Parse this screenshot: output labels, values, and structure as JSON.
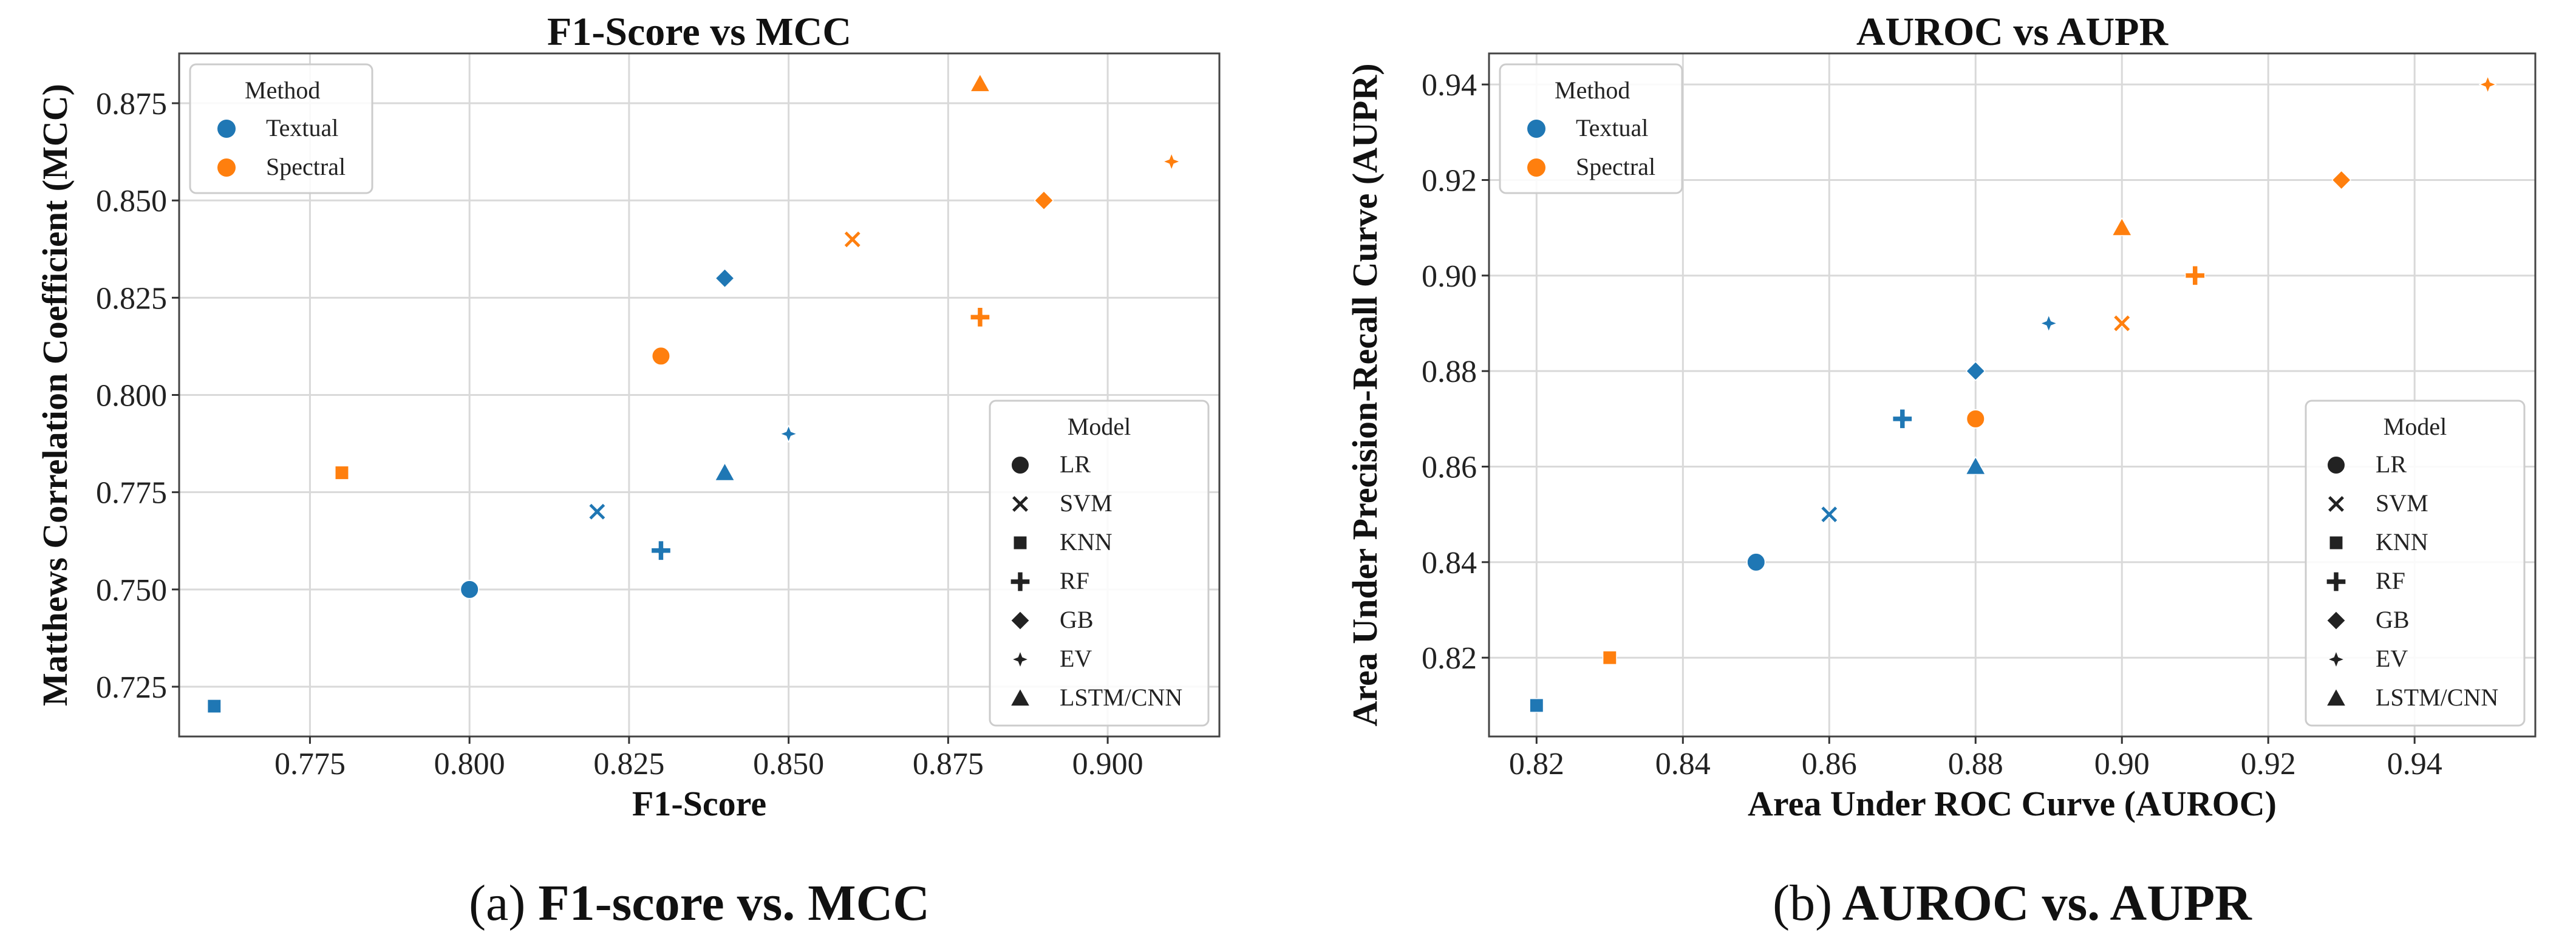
{
  "chart_data": [
    {
      "type": "scatter",
      "title": "F1-Score vs MCC",
      "xlabel": "F1-Score",
      "ylabel": "Matthews Correlation Coefficient (MCC)",
      "xlim": [
        0.7545,
        0.9175
      ],
      "ylim": [
        0.7122,
        0.8878
      ],
      "xticks": [
        0.775,
        0.8,
        0.825,
        0.85,
        0.875,
        0.9
      ],
      "xtick_labels": [
        "0.775",
        "0.800",
        "0.825",
        "0.850",
        "0.875",
        "0.900"
      ],
      "yticks": [
        0.725,
        0.75,
        0.775,
        0.8,
        0.825,
        0.85,
        0.875
      ],
      "ytick_labels": [
        "0.725",
        "0.750",
        "0.775",
        "0.800",
        "0.825",
        "0.850",
        "0.875"
      ],
      "grid": true,
      "caption_letter": "(a)",
      "caption_text": " F1-score vs. MCC",
      "legend_method": {
        "title": "Method",
        "placement": "top-left"
      },
      "legend_model": {
        "title": "Model",
        "placement": "bottom-right"
      },
      "series": [
        {
          "name": "Textual",
          "color": "#1f77b4",
          "points": [
            {
              "model": "LR",
              "x": 0.8,
              "y": 0.75
            },
            {
              "model": "SVM",
              "x": 0.82,
              "y": 0.77
            },
            {
              "model": "KNN",
              "x": 0.76,
              "y": 0.72
            },
            {
              "model": "RF",
              "x": 0.83,
              "y": 0.76
            },
            {
              "model": "GB",
              "x": 0.84,
              "y": 0.83
            },
            {
              "model": "EV",
              "x": 0.85,
              "y": 0.79
            },
            {
              "model": "LSTM/CNN",
              "x": 0.84,
              "y": 0.78
            }
          ]
        },
        {
          "name": "Spectral",
          "color": "#ff7f0e",
          "points": [
            {
              "model": "LR",
              "x": 0.83,
              "y": 0.81
            },
            {
              "model": "SVM",
              "x": 0.86,
              "y": 0.84
            },
            {
              "model": "KNN",
              "x": 0.78,
              "y": 0.78
            },
            {
              "model": "RF",
              "x": 0.88,
              "y": 0.82
            },
            {
              "model": "GB",
              "x": 0.89,
              "y": 0.85
            },
            {
              "model": "EV",
              "x": 0.91,
              "y": 0.86
            },
            {
              "model": "LSTM/CNN",
              "x": 0.88,
              "y": 0.88
            }
          ]
        }
      ]
    },
    {
      "type": "scatter",
      "title": "AUROC vs AUPR",
      "xlabel": "Area Under ROC Curve (AUROC)",
      "ylabel": "Area Under Precision-Recall Curve (AUPR)",
      "xlim": [
        0.8135,
        0.9565
      ],
      "ylim": [
        0.8035,
        0.9465
      ],
      "xticks": [
        0.82,
        0.84,
        0.86,
        0.88,
        0.9,
        0.92,
        0.94
      ],
      "xtick_labels": [
        "0.82",
        "0.84",
        "0.86",
        "0.88",
        "0.90",
        "0.92",
        "0.94"
      ],
      "yticks": [
        0.82,
        0.84,
        0.86,
        0.88,
        0.9,
        0.92,
        0.94
      ],
      "ytick_labels": [
        "0.82",
        "0.84",
        "0.86",
        "0.88",
        "0.90",
        "0.92",
        "0.94"
      ],
      "grid": true,
      "caption_letter": "(b)",
      "caption_text": " AUROC vs. AUPR",
      "legend_method": {
        "title": "Method",
        "placement": "top-left"
      },
      "legend_model": {
        "title": "Model",
        "placement": "bottom-right"
      },
      "series": [
        {
          "name": "Textual",
          "color": "#1f77b4",
          "points": [
            {
              "model": "LR",
              "x": 0.85,
              "y": 0.84
            },
            {
              "model": "SVM",
              "x": 0.86,
              "y": 0.85
            },
            {
              "model": "KNN",
              "x": 0.82,
              "y": 0.81
            },
            {
              "model": "RF",
              "x": 0.87,
              "y": 0.87
            },
            {
              "model": "GB",
              "x": 0.88,
              "y": 0.88
            },
            {
              "model": "EV",
              "x": 0.89,
              "y": 0.89
            },
            {
              "model": "LSTM/CNN",
              "x": 0.88,
              "y": 0.86
            }
          ]
        },
        {
          "name": "Spectral",
          "color": "#ff7f0e",
          "points": [
            {
              "model": "LR",
              "x": 0.88,
              "y": 0.87
            },
            {
              "model": "SVM",
              "x": 0.9,
              "y": 0.89
            },
            {
              "model": "KNN",
              "x": 0.83,
              "y": 0.82
            },
            {
              "model": "RF",
              "x": 0.91,
              "y": 0.9
            },
            {
              "model": "GB",
              "x": 0.93,
              "y": 0.92
            },
            {
              "model": "EV",
              "x": 0.95,
              "y": 0.94
            },
            {
              "model": "LSTM/CNN",
              "x": 0.9,
              "y": 0.91
            }
          ]
        }
      ]
    }
  ],
  "models": [
    {
      "name": "LR",
      "marker": "circle"
    },
    {
      "name": "SVM",
      "marker": "x"
    },
    {
      "name": "KNN",
      "marker": "square"
    },
    {
      "name": "RF",
      "marker": "plus"
    },
    {
      "name": "GB",
      "marker": "diamond"
    },
    {
      "name": "EV",
      "marker": "star4"
    },
    {
      "name": "LSTM/CNN",
      "marker": "triangle"
    }
  ],
  "colors": {
    "legend_marker": "#222222",
    "grid": "#d9d9d9",
    "frame": "#444444"
  }
}
